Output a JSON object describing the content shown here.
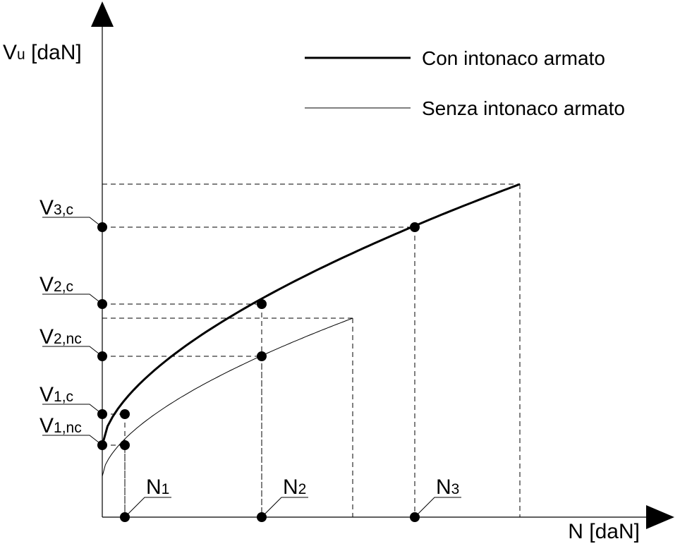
{
  "chart_data": {
    "type": "line",
    "title": "",
    "ylabel": {
      "main": "V",
      "sub": "u",
      "suffix": " [daN]"
    },
    "xlabel": "N [daN]",
    "legend": {
      "placement": "top-right",
      "entries": [
        {
          "label": "Con intonaco armato",
          "series": "con"
        },
        {
          "label": "Senza intonaco armato",
          "series": "senza"
        }
      ]
    },
    "series": [
      {
        "id": "con",
        "line": "thick",
        "x0": 0,
        "y0": 102,
        "xmax": 592,
        "ymax": 472
      },
      {
        "id": "senza",
        "line": "thin",
        "x0": 0,
        "y0": 58,
        "xmax": 355,
        "ymax": 282
      }
    ],
    "points": [
      {
        "id": "p1c",
        "series": "con",
        "x": 32,
        "y": 146
      },
      {
        "id": "p1nc",
        "series": "senza",
        "x": 32,
        "y": 102
      },
      {
        "id": "p2c",
        "series": "con",
        "x": 226,
        "y": 302
      },
      {
        "id": "p2nc",
        "series": "senza",
        "x": 226,
        "y": 228
      },
      {
        "id": "p3c",
        "series": "con",
        "x": 443,
        "y": 411
      }
    ],
    "xticks": [
      {
        "id": "n1",
        "x": 32,
        "main": "N",
        "sub": "1"
      },
      {
        "id": "n2",
        "x": 226,
        "main": "N",
        "sub": "2"
      },
      {
        "id": "n3",
        "x": 443,
        "main": "N",
        "sub": "3"
      }
    ],
    "yticks": [
      {
        "id": "v3c",
        "y": 411,
        "main": "V",
        "sub": "3,c"
      },
      {
        "id": "v2c",
        "y": 302,
        "main": "V",
        "sub": "2,c"
      },
      {
        "id": "v2nc",
        "y": 228,
        "main": "V",
        "sub": "2,nc"
      },
      {
        "id": "v1c",
        "y": 146,
        "main": "V",
        "sub": "1,c"
      },
      {
        "id": "v1nc",
        "y": 102,
        "main": "V",
        "sub": "1,nc"
      }
    ]
  }
}
